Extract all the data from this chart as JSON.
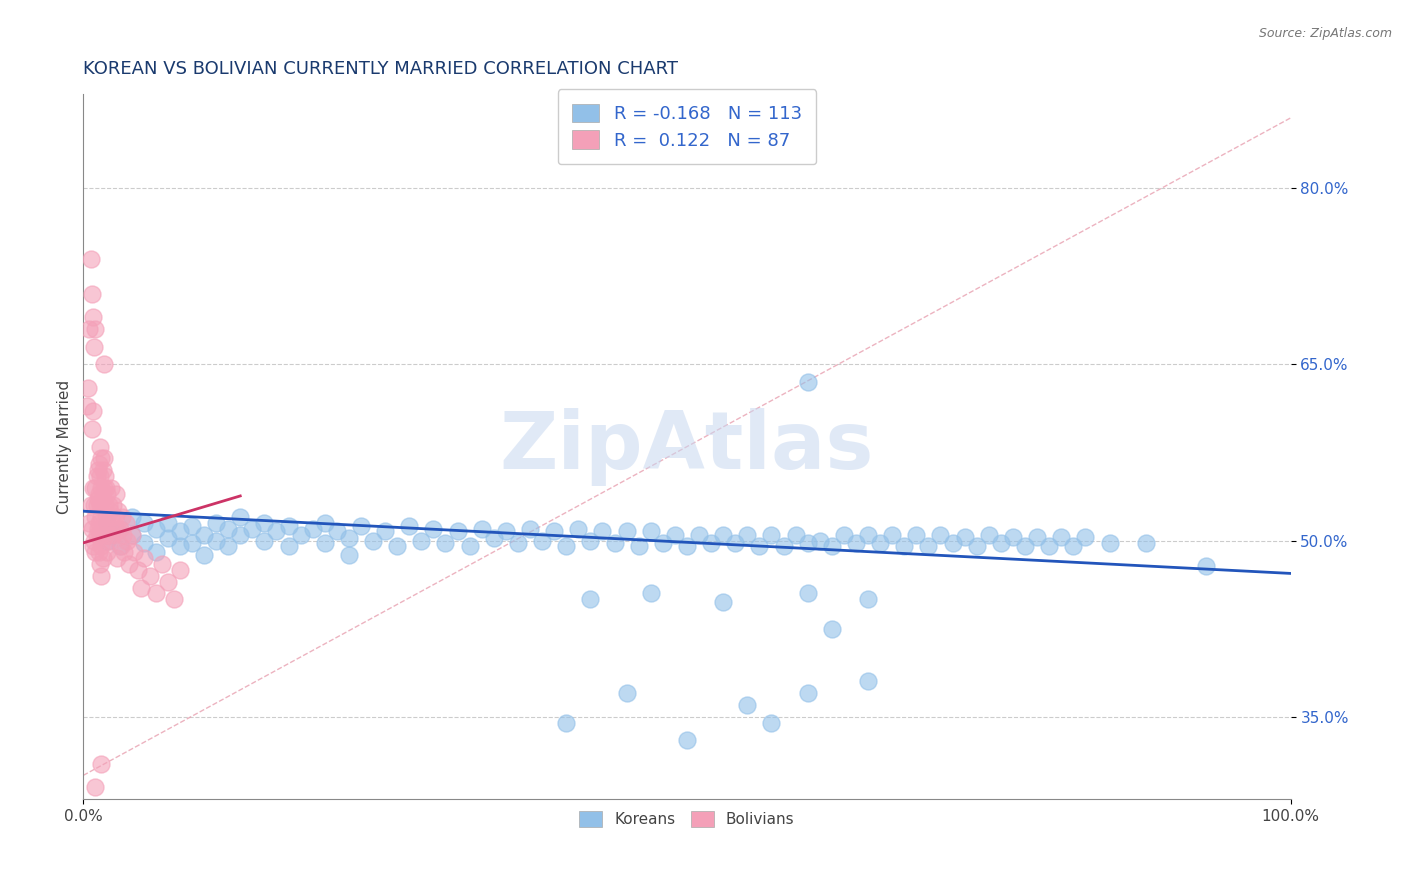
{
  "title": "KOREAN VS BOLIVIAN CURRENTLY MARRIED CORRELATION CHART",
  "source_text": "Source: ZipAtlas.com",
  "ylabel": "Currently Married",
  "xlabel": "",
  "watermark": "ZipAtlas",
  "xlim": [
    0.0,
    1.0
  ],
  "ylim": [
    0.28,
    0.88
  ],
  "xtick_labels": [
    "0.0%",
    "100.0%"
  ],
  "ytick_labels": [
    "35.0%",
    "50.0%",
    "65.0%",
    "80.0%"
  ],
  "ytick_values": [
    0.35,
    0.5,
    0.65,
    0.8
  ],
  "korean_color": "#92C0E8",
  "bolivian_color": "#F4A0B8",
  "korean_R": -0.168,
  "korean_N": 113,
  "bolivian_R": 0.122,
  "bolivian_N": 87,
  "title_color": "#1a3a6e",
  "label_color": "#3366CC",
  "trend_korean_color": "#2255BB",
  "trend_bolivian_color": "#CC3366",
  "ref_line_color": "#F4A0B8",
  "korean_scatter": [
    [
      0.02,
      0.515
    ],
    [
      0.02,
      0.5
    ],
    [
      0.03,
      0.51
    ],
    [
      0.03,
      0.495
    ],
    [
      0.04,
      0.52
    ],
    [
      0.04,
      0.505
    ],
    [
      0.05,
      0.515
    ],
    [
      0.05,
      0.498
    ],
    [
      0.06,
      0.51
    ],
    [
      0.06,
      0.49
    ],
    [
      0.07,
      0.515
    ],
    [
      0.07,
      0.502
    ],
    [
      0.08,
      0.508
    ],
    [
      0.08,
      0.495
    ],
    [
      0.09,
      0.512
    ],
    [
      0.09,
      0.498
    ],
    [
      0.1,
      0.505
    ],
    [
      0.1,
      0.488
    ],
    [
      0.11,
      0.515
    ],
    [
      0.11,
      0.5
    ],
    [
      0.12,
      0.51
    ],
    [
      0.12,
      0.495
    ],
    [
      0.13,
      0.52
    ],
    [
      0.13,
      0.505
    ],
    [
      0.14,
      0.51
    ],
    [
      0.15,
      0.515
    ],
    [
      0.15,
      0.5
    ],
    [
      0.16,
      0.508
    ],
    [
      0.17,
      0.512
    ],
    [
      0.17,
      0.495
    ],
    [
      0.18,
      0.505
    ],
    [
      0.19,
      0.51
    ],
    [
      0.2,
      0.515
    ],
    [
      0.2,
      0.498
    ],
    [
      0.21,
      0.508
    ],
    [
      0.22,
      0.502
    ],
    [
      0.22,
      0.488
    ],
    [
      0.23,
      0.512
    ],
    [
      0.24,
      0.5
    ],
    [
      0.25,
      0.508
    ],
    [
      0.26,
      0.495
    ],
    [
      0.27,
      0.512
    ],
    [
      0.28,
      0.5
    ],
    [
      0.29,
      0.51
    ],
    [
      0.3,
      0.498
    ],
    [
      0.31,
      0.508
    ],
    [
      0.32,
      0.495
    ],
    [
      0.33,
      0.51
    ],
    [
      0.34,
      0.502
    ],
    [
      0.35,
      0.508
    ],
    [
      0.36,
      0.498
    ],
    [
      0.37,
      0.51
    ],
    [
      0.38,
      0.5
    ],
    [
      0.39,
      0.508
    ],
    [
      0.4,
      0.495
    ],
    [
      0.41,
      0.51
    ],
    [
      0.42,
      0.5
    ],
    [
      0.43,
      0.508
    ],
    [
      0.44,
      0.498
    ],
    [
      0.45,
      0.508
    ],
    [
      0.46,
      0.495
    ],
    [
      0.47,
      0.508
    ],
    [
      0.48,
      0.498
    ],
    [
      0.49,
      0.505
    ],
    [
      0.5,
      0.495
    ],
    [
      0.51,
      0.505
    ],
    [
      0.52,
      0.498
    ],
    [
      0.53,
      0.505
    ],
    [
      0.54,
      0.498
    ],
    [
      0.55,
      0.505
    ],
    [
      0.56,
      0.495
    ],
    [
      0.57,
      0.505
    ],
    [
      0.58,
      0.495
    ],
    [
      0.59,
      0.505
    ],
    [
      0.6,
      0.498
    ],
    [
      0.6,
      0.635
    ],
    [
      0.61,
      0.5
    ],
    [
      0.62,
      0.495
    ],
    [
      0.63,
      0.505
    ],
    [
      0.64,
      0.498
    ],
    [
      0.65,
      0.505
    ],
    [
      0.66,
      0.498
    ],
    [
      0.67,
      0.505
    ],
    [
      0.68,
      0.495
    ],
    [
      0.69,
      0.505
    ],
    [
      0.7,
      0.495
    ],
    [
      0.71,
      0.505
    ],
    [
      0.72,
      0.498
    ],
    [
      0.73,
      0.503
    ],
    [
      0.74,
      0.495
    ],
    [
      0.75,
      0.505
    ],
    [
      0.76,
      0.498
    ],
    [
      0.77,
      0.503
    ],
    [
      0.78,
      0.495
    ],
    [
      0.79,
      0.503
    ],
    [
      0.8,
      0.495
    ],
    [
      0.81,
      0.503
    ],
    [
      0.82,
      0.495
    ],
    [
      0.83,
      0.503
    ],
    [
      0.85,
      0.498
    ],
    [
      0.88,
      0.498
    ],
    [
      0.4,
      0.345
    ],
    [
      0.45,
      0.37
    ],
    [
      0.5,
      0.33
    ],
    [
      0.55,
      0.36
    ],
    [
      0.57,
      0.345
    ],
    [
      0.6,
      0.37
    ],
    [
      0.62,
      0.425
    ],
    [
      0.65,
      0.38
    ],
    [
      0.42,
      0.45
    ],
    [
      0.47,
      0.455
    ],
    [
      0.53,
      0.448
    ],
    [
      0.6,
      0.455
    ],
    [
      0.65,
      0.45
    ],
    [
      0.93,
      0.478
    ]
  ],
  "bolivian_scatter": [
    [
      0.005,
      0.515
    ],
    [
      0.006,
      0.53
    ],
    [
      0.007,
      0.51
    ],
    [
      0.008,
      0.495
    ],
    [
      0.008,
      0.545
    ],
    [
      0.009,
      0.53
    ],
    [
      0.009,
      0.5
    ],
    [
      0.01,
      0.545
    ],
    [
      0.01,
      0.52
    ],
    [
      0.01,
      0.49
    ],
    [
      0.011,
      0.555
    ],
    [
      0.011,
      0.53
    ],
    [
      0.011,
      0.505
    ],
    [
      0.012,
      0.56
    ],
    [
      0.012,
      0.535
    ],
    [
      0.012,
      0.51
    ],
    [
      0.013,
      0.565
    ],
    [
      0.013,
      0.54
    ],
    [
      0.013,
      0.515
    ],
    [
      0.013,
      0.49
    ],
    [
      0.014,
      0.58
    ],
    [
      0.014,
      0.555
    ],
    [
      0.014,
      0.53
    ],
    [
      0.014,
      0.505
    ],
    [
      0.014,
      0.48
    ],
    [
      0.015,
      0.57
    ],
    [
      0.015,
      0.545
    ],
    [
      0.015,
      0.52
    ],
    [
      0.015,
      0.495
    ],
    [
      0.015,
      0.47
    ],
    [
      0.016,
      0.56
    ],
    [
      0.016,
      0.535
    ],
    [
      0.016,
      0.51
    ],
    [
      0.016,
      0.485
    ],
    [
      0.017,
      0.65
    ],
    [
      0.017,
      0.57
    ],
    [
      0.017,
      0.545
    ],
    [
      0.018,
      0.555
    ],
    [
      0.018,
      0.53
    ],
    [
      0.018,
      0.505
    ],
    [
      0.019,
      0.545
    ],
    [
      0.019,
      0.52
    ],
    [
      0.02,
      0.54
    ],
    [
      0.02,
      0.515
    ],
    [
      0.02,
      0.49
    ],
    [
      0.021,
      0.53
    ],
    [
      0.021,
      0.505
    ],
    [
      0.022,
      0.525
    ],
    [
      0.022,
      0.5
    ],
    [
      0.023,
      0.545
    ],
    [
      0.023,
      0.52
    ],
    [
      0.024,
      0.51
    ],
    [
      0.025,
      0.53
    ],
    [
      0.025,
      0.505
    ],
    [
      0.026,
      0.52
    ],
    [
      0.027,
      0.54
    ],
    [
      0.028,
      0.51
    ],
    [
      0.028,
      0.485
    ],
    [
      0.029,
      0.525
    ],
    [
      0.03,
      0.51
    ],
    [
      0.031,
      0.495
    ],
    [
      0.032,
      0.52
    ],
    [
      0.033,
      0.505
    ],
    [
      0.034,
      0.49
    ],
    [
      0.035,
      0.515
    ],
    [
      0.036,
      0.5
    ],
    [
      0.038,
      0.48
    ],
    [
      0.04,
      0.505
    ],
    [
      0.042,
      0.49
    ],
    [
      0.045,
      0.475
    ],
    [
      0.048,
      0.46
    ],
    [
      0.05,
      0.485
    ],
    [
      0.055,
      0.47
    ],
    [
      0.06,
      0.455
    ],
    [
      0.065,
      0.48
    ],
    [
      0.07,
      0.465
    ],
    [
      0.075,
      0.45
    ],
    [
      0.08,
      0.475
    ],
    [
      0.005,
      0.68
    ],
    [
      0.007,
      0.71
    ],
    [
      0.006,
      0.74
    ],
    [
      0.008,
      0.69
    ],
    [
      0.003,
      0.615
    ],
    [
      0.004,
      0.63
    ],
    [
      0.009,
      0.665
    ],
    [
      0.01,
      0.68
    ],
    [
      0.007,
      0.595
    ],
    [
      0.008,
      0.61
    ],
    [
      0.015,
      0.31
    ],
    [
      0.01,
      0.29
    ]
  ],
  "korean_trend": [
    0.0,
    1.0,
    0.525,
    0.472
  ],
  "bolivian_trend": [
    0.0,
    0.13,
    0.498,
    0.538
  ],
  "ref_line": [
    0.0,
    1.0,
    0.3,
    0.86
  ]
}
